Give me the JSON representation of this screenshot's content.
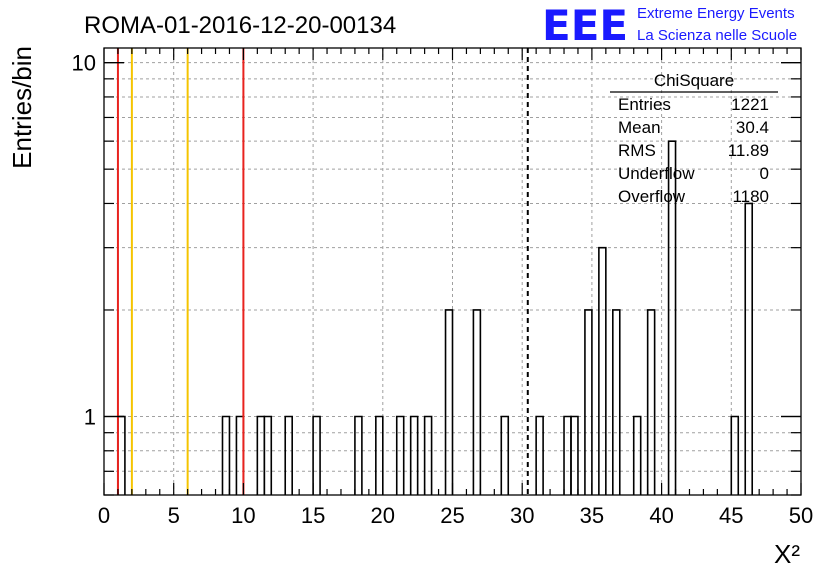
{
  "chart_data": {
    "type": "bar",
    "title": "ROMA-01-2016-12-20-00134",
    "xlabel": "X²",
    "ylabel": "Entries/bin",
    "xlim": [
      0,
      50
    ],
    "ylim": [
      0.6,
      11
    ],
    "ylog": true,
    "grid": true,
    "bin_width": 0.5,
    "x_ticks": [
      0,
      5,
      10,
      15,
      20,
      25,
      30,
      35,
      40,
      45,
      50
    ],
    "y_ticks": [
      1,
      10
    ],
    "bins": [
      {
        "x": 1.0,
        "y": 1
      },
      {
        "x": 8.5,
        "y": 1
      },
      {
        "x": 9.5,
        "y": 1
      },
      {
        "x": 11.0,
        "y": 1
      },
      {
        "x": 11.5,
        "y": 1
      },
      {
        "x": 13.0,
        "y": 1
      },
      {
        "x": 15.0,
        "y": 1
      },
      {
        "x": 18.0,
        "y": 1
      },
      {
        "x": 19.5,
        "y": 1
      },
      {
        "x": 21.0,
        "y": 1
      },
      {
        "x": 22.0,
        "y": 1
      },
      {
        "x": 23.0,
        "y": 1
      },
      {
        "x": 24.5,
        "y": 2
      },
      {
        "x": 26.5,
        "y": 2
      },
      {
        "x": 28.5,
        "y": 1
      },
      {
        "x": 31.0,
        "y": 1
      },
      {
        "x": 33.0,
        "y": 1
      },
      {
        "x": 33.5,
        "y": 1
      },
      {
        "x": 34.5,
        "y": 2
      },
      {
        "x": 35.5,
        "y": 3
      },
      {
        "x": 36.5,
        "y": 2
      },
      {
        "x": 38.0,
        "y": 1
      },
      {
        "x": 39.0,
        "y": 2
      },
      {
        "x": 40.5,
        "y": 6
      },
      {
        "x": 45.0,
        "y": 1
      },
      {
        "x": 46.0,
        "y": 4
      }
    ],
    "vertical_lines": [
      {
        "x": 1.0,
        "color": "#e8231e",
        "style": "solid"
      },
      {
        "x": 2.0,
        "color": "#f5c400",
        "style": "solid"
      },
      {
        "x": 6.0,
        "color": "#f5c400",
        "style": "solid"
      },
      {
        "x": 10.0,
        "color": "#e8231e",
        "style": "solid"
      },
      {
        "x": 30.4,
        "color": "#000000",
        "style": "dashed"
      }
    ],
    "stats_box": {
      "name": "ChiSquare",
      "rows": [
        {
          "label": "Entries",
          "value": "1221"
        },
        {
          "label": "Mean",
          "value": "30.4"
        },
        {
          "label": "RMS",
          "value": "11.89"
        },
        {
          "label": "Underflow",
          "value": "0"
        },
        {
          "label": "Overflow",
          "value": "1180"
        }
      ]
    }
  },
  "logo": {
    "mark": "EEE",
    "line1": "Extreme Energy Events",
    "line2": "La Scienza nelle Scuole",
    "color": "#1a1aff"
  }
}
